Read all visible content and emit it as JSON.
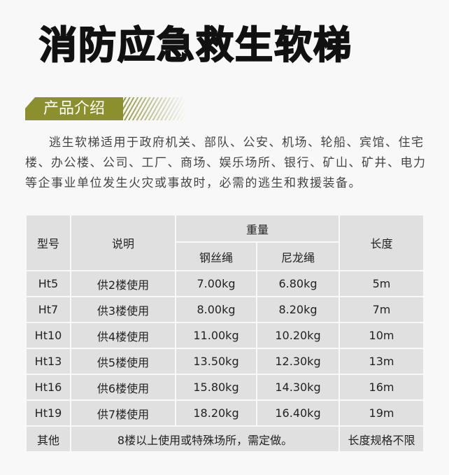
{
  "title": "消防应急救生软梯",
  "section": "产品介绍",
  "intro": "逃生软梯适用于政府机关、部队、公安、机场、轮船、宾馆、住宅楼、办公楼、公司、工厂、商场、娱乐场所、银行、矿山、矿井、电力等企事业单位发生火灾或事故时，必需的逃生和救援装备。",
  "table": {
    "headers": {
      "model": "型号",
      "desc": "说明",
      "weight": "重量",
      "steel": "钢丝绳",
      "nylon": "尼龙绳",
      "length": "长度"
    },
    "rows": [
      [
        "Ht5",
        "供2楼使用",
        "7.00kg",
        "6.80kg",
        "5m"
      ],
      [
        "Ht7",
        "供3楼使用",
        "8.00kg",
        "8.20kg",
        "7m"
      ],
      [
        "Ht10",
        "供4楼使用",
        "11.00kg",
        "10.20kg",
        "10m"
      ],
      [
        "Ht13",
        "供5楼使用",
        "13.50kg",
        "12.30kg",
        "13m"
      ],
      [
        "Ht16",
        "供6楼使用",
        "15.80kg",
        "14.30kg",
        "16m"
      ],
      [
        "Ht19",
        "供7楼使用",
        "18.20kg",
        "16.40kg",
        "19m"
      ]
    ],
    "other": {
      "model": "其他",
      "desc": "8楼以上使用或特殊场所，需定做。",
      "length": "长度规格不限"
    }
  },
  "colors": {
    "accent": "#8b8f2e",
    "cell": "#e0e0e0"
  }
}
